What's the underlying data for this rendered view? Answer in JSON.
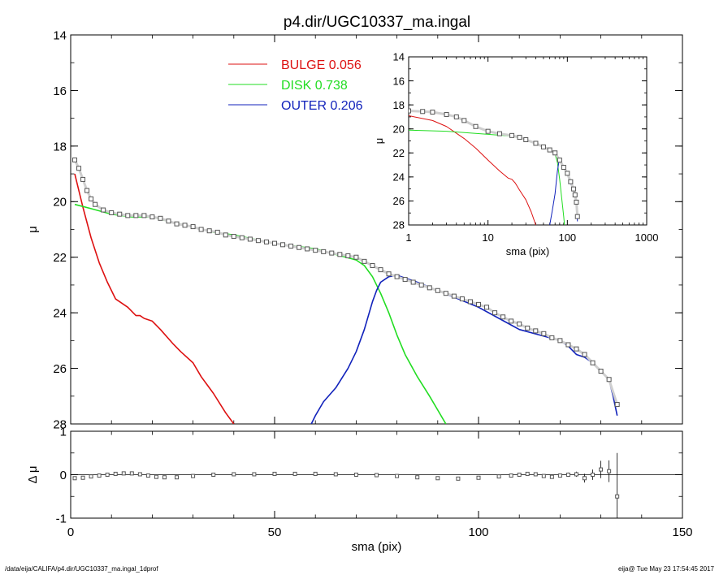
{
  "title": "p4.dir/UGC10337_ma.ingal",
  "footer": {
    "left": "/data/eija/CALIFA/p4.dir/UGC10337_ma.ingal_1dprof",
    "right": "eija@  Tue May 23 17:54:45 2017"
  },
  "colors": {
    "bulge": "#dd1111",
    "disk": "#22dd22",
    "outer": "#1122bb",
    "data": "#555555",
    "axis": "#000000"
  },
  "chart_data": [
    {
      "id": "main",
      "type": "line",
      "xlabel": "sma (pix)",
      "ylabel": "μ",
      "xlim": [
        0,
        150
      ],
      "ylim": [
        28,
        14
      ],
      "x_ticks": [
        "0",
        "50",
        "100",
        "150"
      ],
      "y_ticks": [
        "14",
        "16",
        "18",
        "20",
        "22",
        "24",
        "26",
        "28"
      ],
      "legend": [
        {
          "label": "BULGE",
          "value": "0.056",
          "color": "#dd1111"
        },
        {
          "label": "DISK",
          "value": "0.738",
          "color": "#22dd22"
        },
        {
          "label": "OUTER",
          "value": "0.206",
          "color": "#1122bb"
        }
      ],
      "series": [
        {
          "name": "BULGE",
          "color": "#dd1111",
          "x": [
            1,
            3,
            5,
            7,
            9,
            11,
            14,
            16,
            17,
            18,
            20,
            22,
            25,
            27,
            30,
            32,
            35,
            38,
            40
          ],
          "y": [
            19.0,
            20.2,
            21.3,
            22.2,
            22.9,
            23.5,
            23.8,
            24.1,
            24.1,
            24.2,
            24.3,
            24.6,
            25.1,
            25.4,
            25.8,
            26.3,
            26.9,
            27.6,
            28.0
          ]
        },
        {
          "name": "DISK",
          "color": "#22dd22",
          "x": [
            1,
            5,
            10,
            15,
            20,
            25,
            30,
            35,
            40,
            45,
            50,
            55,
            60,
            65,
            70,
            72,
            74,
            76,
            78,
            80,
            82,
            85,
            88,
            90,
            92
          ],
          "y": [
            20.1,
            20.25,
            20.45,
            20.55,
            20.55,
            20.75,
            20.9,
            21.1,
            21.2,
            21.35,
            21.5,
            21.6,
            21.7,
            21.9,
            22.1,
            22.3,
            22.7,
            23.3,
            24.0,
            24.8,
            25.5,
            26.3,
            27.0,
            27.5,
            28.0
          ]
        },
        {
          "name": "OUTER",
          "color": "#1122bb",
          "x": [
            59,
            60,
            62,
            65,
            68,
            70,
            72,
            74,
            75,
            76,
            78,
            80,
            85,
            90,
            95,
            100,
            105,
            110,
            115,
            120,
            122,
            124,
            126,
            128,
            130,
            132,
            133,
            134
          ],
          "y": [
            28.0,
            27.7,
            27.2,
            26.7,
            26.0,
            25.4,
            24.6,
            23.6,
            23.2,
            22.9,
            22.7,
            22.65,
            22.9,
            23.2,
            23.5,
            23.8,
            24.2,
            24.6,
            24.8,
            25.0,
            25.2,
            25.5,
            25.6,
            25.8,
            26.1,
            26.4,
            27.0,
            27.7
          ]
        },
        {
          "name": "DATA",
          "color": "#555555",
          "x": [
            1,
            2,
            3,
            4,
            5,
            6,
            8,
            10,
            12,
            14,
            16,
            18,
            20,
            22,
            24,
            26,
            28,
            30,
            32,
            34,
            36,
            38,
            40,
            42,
            44,
            46,
            48,
            50,
            52,
            54,
            56,
            58,
            60,
            62,
            64,
            66,
            68,
            70,
            72,
            74,
            76,
            78,
            80,
            82,
            84,
            86,
            88,
            90,
            92,
            94,
            96,
            98,
            100,
            102,
            104,
            106,
            108,
            110,
            112,
            114,
            116,
            118,
            120,
            122,
            124,
            126,
            128,
            130,
            132,
            134
          ],
          "y": [
            18.5,
            18.8,
            19.2,
            19.6,
            19.9,
            20.1,
            20.3,
            20.4,
            20.45,
            20.5,
            20.5,
            20.5,
            20.55,
            20.6,
            20.7,
            20.8,
            20.85,
            20.9,
            21.0,
            21.05,
            21.1,
            21.2,
            21.25,
            21.3,
            21.35,
            21.4,
            21.45,
            21.5,
            21.55,
            21.6,
            21.65,
            21.7,
            21.75,
            21.8,
            21.85,
            21.9,
            21.95,
            22.0,
            22.15,
            22.3,
            22.45,
            22.6,
            22.7,
            22.8,
            22.9,
            23.0,
            23.1,
            23.2,
            23.3,
            23.4,
            23.5,
            23.6,
            23.7,
            23.8,
            24.0,
            24.15,
            24.3,
            24.4,
            24.55,
            24.65,
            24.75,
            24.9,
            25.0,
            25.15,
            25.3,
            25.5,
            25.8,
            26.1,
            26.4,
            27.3
          ]
        }
      ]
    },
    {
      "id": "residual",
      "type": "scatter",
      "xlabel": "sma (pix)",
      "ylabel": "Δ μ",
      "xlim": [
        0,
        150
      ],
      "ylim": [
        -1,
        1
      ],
      "x_ticks": [
        "0",
        "50",
        "100",
        "150"
      ],
      "y_ticks": [
        "1",
        "0",
        "-1"
      ],
      "series": [
        {
          "name": "RESIDUAL",
          "color": "#555555",
          "x": [
            1,
            3,
            5,
            7,
            9,
            11,
            13,
            15,
            17,
            19,
            21,
            23,
            26,
            30,
            35,
            40,
            45,
            50,
            55,
            60,
            65,
            70,
            75,
            80,
            85,
            90,
            95,
            100,
            105,
            108,
            110,
            112,
            114,
            116,
            118,
            120,
            122,
            124,
            126,
            128,
            130,
            132,
            134
          ],
          "y": [
            -0.08,
            -0.07,
            -0.04,
            -0.02,
            0.0,
            0.02,
            0.03,
            0.03,
            0.01,
            -0.02,
            -0.05,
            -0.06,
            -0.06,
            -0.03,
            0.0,
            0.01,
            0.01,
            0.02,
            0.02,
            0.02,
            0.01,
            0.0,
            -0.01,
            -0.03,
            -0.06,
            -0.08,
            -0.09,
            -0.07,
            -0.04,
            -0.02,
            0.0,
            0.02,
            0.01,
            -0.03,
            -0.05,
            -0.02,
            0.0,
            0.01,
            -0.08,
            0.0,
            0.12,
            0.08,
            -0.5
          ],
          "err": [
            0.01,
            0.01,
            0.01,
            0.01,
            0.01,
            0.01,
            0.01,
            0.01,
            0.01,
            0.01,
            0.01,
            0.01,
            0.01,
            0.01,
            0.01,
            0.01,
            0.01,
            0.01,
            0.01,
            0.01,
            0.01,
            0.01,
            0.01,
            0.01,
            0.01,
            0.01,
            0.01,
            0.01,
            0.01,
            0.01,
            0.01,
            0.02,
            0.03,
            0.03,
            0.03,
            0.04,
            0.05,
            0.06,
            0.1,
            0.12,
            0.2,
            0.25,
            1.0
          ]
        }
      ]
    },
    {
      "id": "inset",
      "type": "line",
      "xlabel": "sma (pix)",
      "ylabel": "μ",
      "xscale": "log",
      "xlim": [
        1,
        1000
      ],
      "ylim": [
        28,
        14
      ],
      "x_ticks": [
        "1",
        "10",
        "100",
        "1000"
      ],
      "y_ticks": [
        "14",
        "16",
        "18",
        "20",
        "22",
        "24",
        "26",
        "28"
      ],
      "series": [
        {
          "name": "BULGE",
          "color": "#dd1111",
          "x": [
            1,
            2,
            3,
            5,
            7,
            10,
            14,
            18,
            20,
            22,
            25,
            30,
            35,
            40
          ],
          "y": [
            18.9,
            19.3,
            19.8,
            20.8,
            21.6,
            22.6,
            23.5,
            24.1,
            24.2,
            24.5,
            25.1,
            25.9,
            26.9,
            28.0
          ]
        },
        {
          "name": "DISK",
          "color": "#22dd22",
          "x": [
            1,
            3,
            10,
            20,
            30,
            40,
            50,
            60,
            65,
            70,
            75,
            80,
            85,
            90,
            92
          ],
          "y": [
            20.1,
            20.2,
            20.45,
            20.6,
            20.9,
            21.2,
            21.5,
            21.7,
            21.9,
            22.1,
            22.8,
            24.2,
            25.8,
            27.3,
            28.0
          ]
        },
        {
          "name": "OUTER",
          "color": "#1122bb",
          "x": [
            60,
            65,
            70,
            75,
            78,
            80,
            90,
            100,
            110,
            120,
            130,
            134
          ],
          "y": [
            28.0,
            26.7,
            25.4,
            23.5,
            22.8,
            22.65,
            23.2,
            23.8,
            24.6,
            25.0,
            26.1,
            27.7
          ]
        },
        {
          "name": "DATA",
          "color": "#555555",
          "x": [
            1,
            1.5,
            2,
            3,
            4,
            5,
            7,
            10,
            14,
            20,
            25,
            30,
            40,
            50,
            60,
            70,
            80,
            90,
            100,
            110,
            120,
            125,
            130,
            134
          ],
          "y": [
            18.5,
            18.55,
            18.6,
            18.8,
            19.0,
            19.3,
            19.8,
            20.2,
            20.4,
            20.55,
            20.7,
            20.9,
            21.2,
            21.5,
            21.75,
            22.0,
            22.6,
            23.2,
            23.7,
            24.4,
            25.0,
            25.5,
            26.1,
            27.3
          ]
        }
      ]
    }
  ]
}
